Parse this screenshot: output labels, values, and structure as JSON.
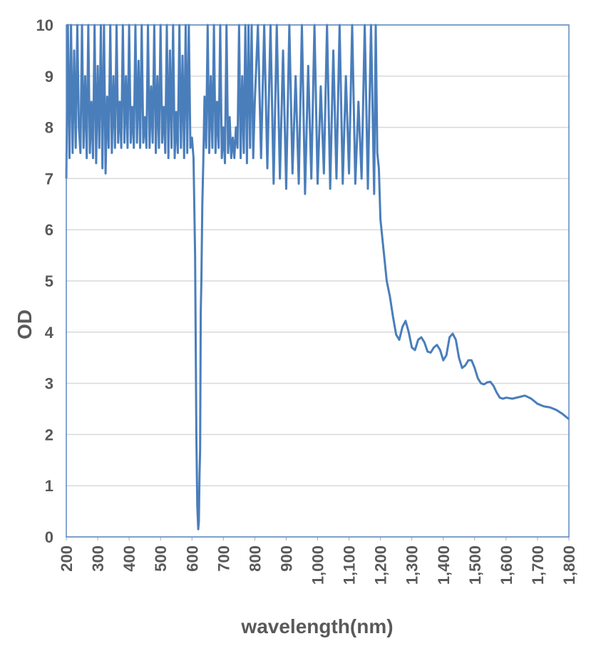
{
  "chart_data": {
    "type": "line",
    "xlabel": "wavelength(nm)",
    "ylabel": "OD",
    "color": "#4a7ebb",
    "grid": true,
    "xlim": [
      200,
      1800
    ],
    "xticks": [
      200,
      300,
      400,
      500,
      600,
      700,
      800,
      900,
      {
        "value": 1000,
        "label": "1,000"
      },
      {
        "value": 1100,
        "label": "1,100"
      },
      {
        "value": 1200,
        "label": "1,200"
      },
      {
        "value": 1300,
        "label": "1,300"
      },
      {
        "value": 1400,
        "label": "1,400"
      },
      {
        "value": 1500,
        "label": "1,500"
      },
      {
        "value": 1600,
        "label": "1,600"
      },
      {
        "value": 1700,
        "label": "1,700"
      },
      {
        "value": 1800,
        "label": "1,800"
      }
    ],
    "ylim": [
      0,
      10
    ],
    "yticks": [
      0,
      1,
      2,
      3,
      4,
      5,
      6,
      7,
      8,
      9,
      10
    ],
    "x": [
      200,
      205,
      210,
      215,
      220,
      225,
      230,
      235,
      240,
      245,
      250,
      255,
      260,
      265,
      270,
      275,
      280,
      285,
      290,
      295,
      300,
      305,
      310,
      315,
      320,
      325,
      330,
      335,
      340,
      345,
      350,
      355,
      360,
      365,
      370,
      375,
      380,
      385,
      390,
      395,
      400,
      405,
      410,
      415,
      420,
      425,
      430,
      435,
      440,
      445,
      450,
      455,
      460,
      465,
      470,
      475,
      480,
      485,
      490,
      495,
      500,
      505,
      510,
      515,
      520,
      525,
      530,
      535,
      540,
      545,
      550,
      555,
      560,
      565,
      570,
      575,
      580,
      585,
      590,
      595,
      600,
      605,
      610,
      614,
      617,
      620,
      622,
      624,
      626,
      628,
      630,
      633,
      636,
      640,
      645,
      650,
      655,
      660,
      665,
      670,
      675,
      680,
      685,
      690,
      695,
      700,
      705,
      710,
      715,
      720,
      725,
      730,
      735,
      740,
      745,
      750,
      755,
      760,
      765,
      770,
      775,
      780,
      785,
      790,
      795,
      800,
      810,
      820,
      830,
      840,
      850,
      860,
      870,
      880,
      890,
      900,
      910,
      920,
      930,
      940,
      950,
      960,
      970,
      980,
      990,
      1000,
      1010,
      1020,
      1030,
      1040,
      1050,
      1060,
      1070,
      1080,
      1090,
      1100,
      1110,
      1120,
      1130,
      1140,
      1150,
      1160,
      1170,
      1180,
      1185,
      1190,
      1195,
      1200,
      1210,
      1220,
      1230,
      1240,
      1250,
      1260,
      1270,
      1280,
      1290,
      1300,
      1310,
      1320,
      1330,
      1340,
      1350,
      1360,
      1370,
      1380,
      1390,
      1400,
      1410,
      1420,
      1430,
      1440,
      1450,
      1460,
      1470,
      1480,
      1490,
      1500,
      1510,
      1520,
      1530,
      1540,
      1550,
      1560,
      1570,
      1580,
      1590,
      1600,
      1620,
      1640,
      1660,
      1680,
      1700,
      1720,
      1740,
      1760,
      1780,
      1800
    ],
    "values": [
      7.0,
      10,
      7.4,
      10,
      7.5,
      9.5,
      7.6,
      10,
      8,
      7.5,
      10,
      7.6,
      9,
      7.4,
      10,
      7.5,
      8.5,
      7.4,
      10,
      7.3,
      9.2,
      7.6,
      10,
      7.2,
      10,
      7.1,
      8.6,
      7.6,
      10,
      7.5,
      9,
      7.6,
      10,
      7.7,
      8.5,
      7.6,
      10,
      7.7,
      9,
      7.6,
      10,
      7.7,
      8.4,
      7.6,
      10,
      7.7,
      9.3,
      7.6,
      10,
      7.7,
      8.2,
      7.6,
      10,
      7.6,
      8.8,
      7.7,
      10,
      7.5,
      9,
      7.6,
      10,
      7.7,
      8.4,
      7.5,
      10,
      7.4,
      9.5,
      7.6,
      10,
      7.4,
      8.3,
      7.5,
      10,
      7.6,
      9.4,
      7.4,
      10,
      7.5,
      10,
      7.6,
      7.8,
      7.4,
      5.5,
      2,
      0.6,
      0.15,
      0.3,
      1.2,
      1.7,
      4.4,
      5.0,
      6.5,
      7.3,
      8.6,
      7.6,
      10,
      7.5,
      9,
      7.6,
      10,
      7.5,
      8.5,
      7.6,
      10,
      7.4,
      8,
      7.3,
      10,
      7.5,
      8.2,
      7.4,
      7.8,
      7.4,
      8,
      7.6,
      10,
      7.4,
      9,
      7.5,
      10,
      7.3,
      10,
      7.6,
      10,
      7.4,
      8.5,
      10,
      7.4,
      10,
      7.2,
      10,
      6.9,
      10,
      7.0,
      9.5,
      6.8,
      10,
      7.1,
      9,
      6.9,
      10,
      6.7,
      9.2,
      7.0,
      10,
      6.9,
      8.8,
      7.1,
      10,
      6.8,
      9.5,
      7.0,
      10,
      6.9,
      9,
      7.1,
      10,
      6.9,
      8.5,
      7.0,
      10,
      6.8,
      10,
      6.7,
      10,
      7.5,
      7.2,
      6.2,
      5.6,
      5.0,
      4.7,
      4.3,
      3.95,
      3.85,
      4.1,
      4.22,
      4.0,
      3.7,
      3.65,
      3.85,
      3.9,
      3.8,
      3.62,
      3.6,
      3.7,
      3.75,
      3.65,
      3.45,
      3.55,
      3.9,
      3.97,
      3.85,
      3.5,
      3.3,
      3.35,
      3.45,
      3.45,
      3.3,
      3.1,
      3.0,
      2.98,
      3.02,
      3.03,
      2.95,
      2.82,
      2.72,
      2.7,
      2.72,
      2.7,
      2.73,
      2.76,
      2.7,
      2.6,
      2.55,
      2.53,
      2.48,
      2.4,
      2.3
    ]
  }
}
